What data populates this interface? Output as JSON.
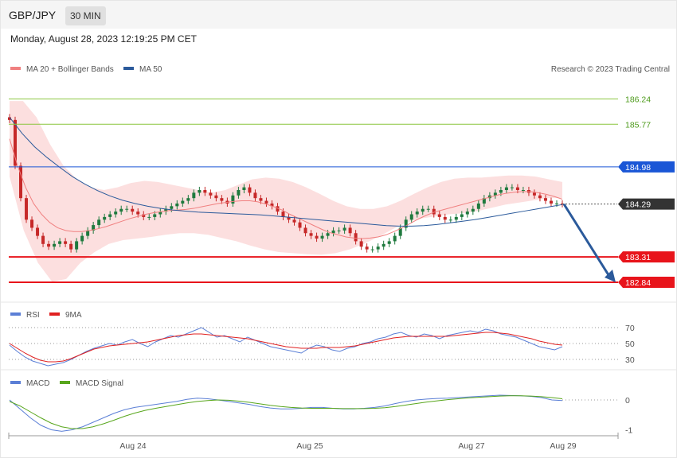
{
  "header": {
    "symbol": "GBP/JPY",
    "timeframe": "30 MIN"
  },
  "datetime": "Monday, August 28, 2023 12:19:25 PM CET",
  "legend": {
    "ma20": "MA 20 + Bollinger Bands",
    "ma50": "MA 50",
    "copyright": "Research © 2023 Trading Central",
    "rsi": "RSI",
    "rsi_ma": "9MA",
    "macd": "MACD",
    "macd_signal": "MACD Signal"
  },
  "colors": {
    "ma20": "#f08080",
    "ma50": "#2b5a9b",
    "bollinger": "#fbd7d7",
    "up": "#1f7a3e",
    "down": "#c62828",
    "resistance_green": "#8cc63f",
    "pivot_blue": "#1a56d6",
    "support_red": "#e8141b",
    "current": "#333333",
    "rsi": "#5b7fd6",
    "rsi_ma": "#e02020",
    "macd": "#5b7fd6",
    "macd_signal": "#58a61c"
  },
  "chart_data": [
    {
      "type": "candlestick",
      "title": "GBP/JPY 30 MIN",
      "ylim": [
        182.5,
        186.6
      ],
      "x_ticks": [
        "Aug 24",
        "Aug 25",
        "Aug 27",
        "Aug 29"
      ],
      "levels": [
        {
          "value": 186.24,
          "label": "186.24",
          "kind": "resistance"
        },
        {
          "value": 185.77,
          "label": "185.77",
          "kind": "resistance"
        },
        {
          "value": 184.98,
          "label": "184.98",
          "kind": "pivot"
        },
        {
          "value": 184.29,
          "label": "184.29",
          "kind": "current"
        },
        {
          "value": 183.31,
          "label": "183.31",
          "kind": "support"
        },
        {
          "value": 182.84,
          "label": "182.84",
          "kind": "support"
        }
      ],
      "close_series": [
        185.85,
        185.0,
        184.4,
        184.0,
        183.85,
        183.7,
        183.55,
        183.5,
        183.55,
        183.6,
        183.55,
        183.45,
        183.6,
        183.7,
        183.8,
        183.9,
        184.0,
        184.05,
        184.1,
        184.15,
        184.2,
        184.2,
        184.15,
        184.1,
        184.05,
        184.05,
        184.1,
        184.15,
        184.2,
        184.25,
        184.3,
        184.35,
        184.4,
        184.5,
        184.55,
        184.5,
        184.45,
        184.4,
        184.35,
        184.3,
        184.45,
        184.55,
        184.6,
        184.5,
        184.4,
        184.35,
        184.3,
        184.25,
        184.15,
        184.05,
        184.0,
        183.95,
        183.85,
        183.75,
        183.7,
        183.65,
        183.7,
        183.75,
        183.8,
        183.8,
        183.85,
        183.75,
        183.6,
        183.5,
        183.45,
        183.45,
        183.5,
        183.55,
        183.6,
        183.7,
        183.85,
        184.0,
        184.1,
        184.15,
        184.2,
        184.2,
        184.1,
        184.05,
        184.0,
        184.0,
        184.05,
        184.1,
        184.15,
        184.2,
        184.3,
        184.4,
        184.45,
        184.5,
        184.55,
        184.6,
        184.6,
        184.55,
        184.55,
        184.5,
        184.45,
        184.4,
        184.35,
        184.3,
        184.3,
        184.29
      ],
      "ma20_series": [
        185.5,
        185.0,
        184.6,
        184.3,
        184.1,
        183.95,
        183.85,
        183.8,
        183.78,
        183.78,
        183.8,
        183.83,
        183.87,
        183.92,
        183.97,
        184.02,
        184.06,
        184.1,
        184.13,
        184.15,
        184.17,
        184.18,
        184.19,
        184.21,
        184.24,
        184.27,
        184.3,
        184.32,
        184.34,
        184.35,
        184.35,
        184.33,
        184.29,
        184.24,
        184.18,
        184.1,
        184.03,
        183.96,
        183.89,
        183.82,
        183.76,
        183.72,
        183.68,
        183.66,
        183.65,
        183.66,
        183.68,
        183.72,
        183.78,
        183.85,
        183.93,
        184.01,
        184.08,
        184.14,
        184.18,
        184.22,
        184.26,
        184.3,
        184.34,
        184.38,
        184.42,
        184.46,
        184.49,
        184.51,
        184.52,
        184.52,
        184.5,
        184.47,
        184.43,
        184.38
      ],
      "ma50_series": [
        185.9,
        185.6,
        185.35,
        185.15,
        184.97,
        184.8,
        184.66,
        184.54,
        184.44,
        184.36,
        184.3,
        184.25,
        184.21,
        184.18,
        184.16,
        184.14,
        184.13,
        184.12,
        184.11,
        184.1,
        184.09,
        184.07,
        184.05,
        184.03,
        184.01,
        183.99,
        183.97,
        183.95,
        183.93,
        183.91,
        183.89,
        183.88,
        183.88,
        183.89,
        183.91,
        183.94,
        183.97,
        184.0,
        184.04,
        184.08,
        184.12,
        184.16,
        184.2,
        184.24,
        184.28
      ],
      "bollinger_upper": [
        186.2,
        186.2,
        185.9,
        185.4,
        185.0,
        184.75,
        184.6,
        184.55,
        184.6,
        184.68,
        184.72,
        184.7,
        184.65,
        184.6,
        184.55,
        184.5,
        184.55,
        184.65,
        184.75,
        184.78,
        184.76,
        184.7,
        184.6,
        184.48,
        184.35,
        184.25,
        184.2,
        184.2,
        184.25,
        184.35,
        184.48,
        184.6,
        184.7,
        184.76,
        184.78,
        184.78,
        184.8,
        184.82,
        184.82,
        184.8,
        184.75,
        184.7
      ],
      "bollinger_lower": [
        184.8,
        183.8,
        183.2,
        182.85,
        182.9,
        183.2,
        183.4,
        183.55,
        183.62,
        183.65,
        183.68,
        183.72,
        183.75,
        183.75,
        183.72,
        183.66,
        183.6,
        183.52,
        183.45,
        183.4,
        183.38,
        183.36,
        183.35,
        183.38,
        183.45,
        183.55,
        183.68,
        183.82,
        183.95,
        184.02,
        184.06,
        184.1,
        184.12,
        184.16,
        184.22,
        184.28,
        184.32,
        184.36,
        184.4,
        184.4
      ]
    },
    {
      "type": "line",
      "title": "RSI",
      "y_ticks": [
        70,
        50,
        30
      ],
      "ylim": [
        20,
        80
      ],
      "series": [
        {
          "name": "RSI",
          "values": [
            48,
            40,
            33,
            28,
            25,
            22,
            24,
            26,
            30,
            35,
            40,
            44,
            47,
            50,
            48,
            52,
            55,
            50,
            46,
            52,
            56,
            60,
            58,
            62,
            66,
            70,
            64,
            58,
            60,
            56,
            52,
            58,
            54,
            50,
            46,
            44,
            42,
            40,
            38,
            44,
            48,
            46,
            42,
            40,
            44,
            46,
            50,
            52,
            56,
            58,
            62,
            64,
            60,
            58,
            62,
            60,
            56,
            60,
            62,
            64,
            66,
            64,
            68,
            66,
            62,
            60,
            58,
            54,
            50,
            46,
            44,
            42,
            46
          ]
        },
        {
          "name": "9MA",
          "values": [
            50,
            44,
            38,
            33,
            29,
            27,
            27,
            28,
            31,
            35,
            39,
            43,
            45,
            47,
            48,
            49,
            50,
            51,
            52,
            54,
            56,
            58,
            60,
            61,
            62,
            62,
            61,
            60,
            59,
            58,
            57,
            56,
            54,
            52,
            50,
            48,
            46,
            45,
            44,
            44,
            44,
            45,
            45,
            45,
            46,
            47,
            49,
            51,
            53,
            55,
            57,
            58,
            59,
            59,
            59,
            59,
            59,
            59,
            60,
            61,
            62,
            63,
            64,
            64,
            63,
            62,
            60,
            58,
            56,
            53,
            51,
            49,
            48
          ]
        }
      ]
    },
    {
      "type": "line",
      "title": "MACD",
      "y_ticks": [
        0,
        -1
      ],
      "ylim": [
        -1.2,
        0.4
      ],
      "series": [
        {
          "name": "MACD",
          "values": [
            0.0,
            -0.3,
            -0.6,
            -0.85,
            -1.0,
            -1.05,
            -1.0,
            -0.9,
            -0.75,
            -0.6,
            -0.45,
            -0.33,
            -0.25,
            -0.2,
            -0.15,
            -0.1,
            -0.05,
            0.02,
            0.06,
            0.04,
            0.0,
            -0.05,
            -0.1,
            -0.15,
            -0.22,
            -0.27,
            -0.3,
            -0.3,
            -0.28,
            -0.25,
            -0.25,
            -0.28,
            -0.3,
            -0.3,
            -0.28,
            -0.25,
            -0.2,
            -0.12,
            -0.05,
            0.0,
            0.03,
            0.05,
            0.06,
            0.08,
            0.1,
            0.12,
            0.14,
            0.16,
            0.15,
            0.14,
            0.12,
            0.08,
            0.0,
            -0.02
          ]
        },
        {
          "name": "MACD Signal",
          "values": [
            -0.05,
            -0.2,
            -0.4,
            -0.6,
            -0.78,
            -0.9,
            -0.96,
            -0.96,
            -0.9,
            -0.8,
            -0.68,
            -0.55,
            -0.44,
            -0.35,
            -0.28,
            -0.22,
            -0.16,
            -0.1,
            -0.05,
            -0.02,
            0.0,
            -0.01,
            -0.04,
            -0.08,
            -0.13,
            -0.18,
            -0.22,
            -0.25,
            -0.27,
            -0.28,
            -0.28,
            -0.28,
            -0.29,
            -0.29,
            -0.29,
            -0.28,
            -0.26,
            -0.22,
            -0.17,
            -0.12,
            -0.07,
            -0.03,
            0.01,
            0.04,
            0.07,
            0.09,
            0.11,
            0.13,
            0.14,
            0.14,
            0.13,
            0.11,
            0.08,
            0.04
          ]
        }
      ]
    }
  ]
}
